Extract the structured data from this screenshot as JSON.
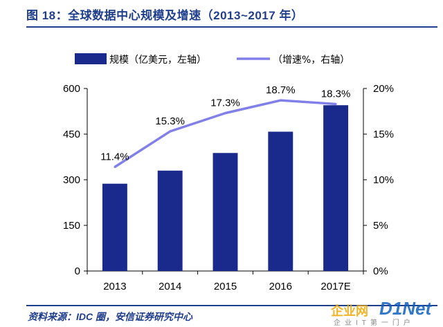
{
  "header": {
    "title": "图 18：全球数据中心规模及增速（2013~2017 年）"
  },
  "footer": {
    "source": "资料来源：IDC 圈，安信证券研究中心",
    "watermark_main": "企业网",
    "watermark_brand": "D1Net",
    "watermark_sub": "企业IT第一门户"
  },
  "colors": {
    "bar": "#1a2a8c",
    "line": "#8080e8",
    "title": "#1f3e8c",
    "axis": "#000000"
  },
  "chart_data": {
    "type": "bar",
    "categories": [
      "2013",
      "2014",
      "2015",
      "2016",
      "2017E"
    ],
    "series": [
      {
        "name": "规模（亿美元，左轴",
        "legend_label": "规模（亿美元，左轴）",
        "type": "bar",
        "axis": "left",
        "values": [
          287,
          330,
          388,
          458,
          545
        ]
      },
      {
        "name": "增速%，右轴",
        "legend_label": "（增速%，右轴）",
        "type": "line",
        "axis": "right",
        "values": [
          11.4,
          15.3,
          17.3,
          18.7,
          18.3
        ],
        "data_labels": [
          "11.4%",
          "15.3%",
          "17.3%",
          "18.7%",
          "18.3%"
        ]
      }
    ],
    "left_axis": {
      "ylim": [
        0,
        600
      ],
      "ticks": [
        0,
        150,
        300,
        450,
        600
      ],
      "tick_labels": [
        "0",
        "150",
        "300",
        "450",
        "600"
      ]
    },
    "right_axis": {
      "ylim": [
        0,
        20
      ],
      "ticks": [
        0,
        5,
        10,
        15,
        20
      ],
      "tick_labels": [
        "0%",
        "5%",
        "10%",
        "15%",
        "20%"
      ]
    },
    "legend_position": "top",
    "grid": false
  }
}
